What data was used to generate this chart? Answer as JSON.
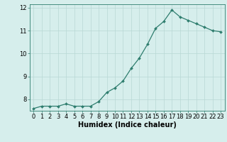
{
  "x": [
    0,
    1,
    2,
    3,
    4,
    5,
    6,
    7,
    8,
    9,
    10,
    11,
    12,
    13,
    14,
    15,
    16,
    17,
    18,
    19,
    20,
    21,
    22,
    23
  ],
  "y": [
    7.6,
    7.7,
    7.7,
    7.7,
    7.8,
    7.7,
    7.7,
    7.7,
    7.9,
    8.3,
    8.5,
    8.8,
    9.35,
    9.8,
    10.4,
    11.1,
    11.4,
    11.9,
    11.6,
    11.45,
    11.3,
    11.15,
    11.0,
    10.95
  ],
  "xlabel": "Humidex (Indice chaleur)",
  "ylim": [
    7.5,
    12.15
  ],
  "xlim": [
    -0.5,
    23.5
  ],
  "yticks": [
    8,
    9,
    10,
    11,
    12
  ],
  "xticks": [
    0,
    1,
    2,
    3,
    4,
    5,
    6,
    7,
    8,
    9,
    10,
    11,
    12,
    13,
    14,
    15,
    16,
    17,
    18,
    19,
    20,
    21,
    22,
    23
  ],
  "line_color": "#2e7d6e",
  "marker_color": "#2e7d6e",
  "bg_color": "#d6eeec",
  "grid_color": "#b8d8d4",
  "tick_label_fontsize": 6.0,
  "xlabel_fontsize": 7.0
}
